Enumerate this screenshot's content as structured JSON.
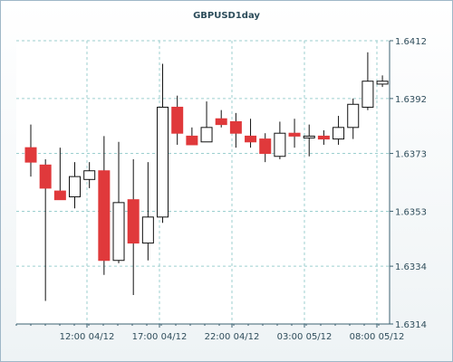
{
  "chart_data": {
    "type": "candlestick",
    "title": "GBPUSD1day",
    "y_ticks": [
      "1.6412",
      "1.6392",
      "1.6373",
      "1.6353",
      "1.6334",
      "1.6314"
    ],
    "x_ticks": [
      "12:00 04/12",
      "17:00 04/12",
      "22:00 04/12",
      "03:00 05/12",
      "08:00 05/12"
    ],
    "ylim": [
      1.6314,
      1.6412
    ],
    "grid": true,
    "colors": {
      "up": "#ffffff",
      "down": "#e0393b",
      "outline": "#111111",
      "grid": "#9ccfcf",
      "axis": "#3c6272"
    },
    "candles": [
      {
        "open": 1.6375,
        "high": 1.6383,
        "low": 1.6365,
        "close": 1.637
      },
      {
        "open": 1.6369,
        "high": 1.6371,
        "low": 1.6322,
        "close": 1.6361
      },
      {
        "open": 1.636,
        "high": 1.6375,
        "low": 1.6357,
        "close": 1.6357
      },
      {
        "open": 1.6358,
        "high": 1.637,
        "low": 1.6354,
        "close": 1.6365
      },
      {
        "open": 1.6364,
        "high": 1.637,
        "low": 1.6361,
        "close": 1.6367
      },
      {
        "open": 1.6367,
        "high": 1.6379,
        "low": 1.6331,
        "close": 1.6336
      },
      {
        "open": 1.6336,
        "high": 1.6377,
        "low": 1.6335,
        "close": 1.6356
      },
      {
        "open": 1.6357,
        "high": 1.6371,
        "low": 1.6324,
        "close": 1.6342
      },
      {
        "open": 1.6342,
        "high": 1.637,
        "low": 1.6336,
        "close": 1.6351
      },
      {
        "open": 1.6351,
        "high": 1.6404,
        "low": 1.6349,
        "close": 1.6389
      },
      {
        "open": 1.6389,
        "high": 1.6393,
        "low": 1.6376,
        "close": 1.638
      },
      {
        "open": 1.6379,
        "high": 1.6382,
        "low": 1.6376,
        "close": 1.6376
      },
      {
        "open": 1.6377,
        "high": 1.6391,
        "low": 1.6377,
        "close": 1.6382
      },
      {
        "open": 1.6385,
        "high": 1.6388,
        "low": 1.6382,
        "close": 1.6383
      },
      {
        "open": 1.6384,
        "high": 1.6387,
        "low": 1.6375,
        "close": 1.638
      },
      {
        "open": 1.6379,
        "high": 1.6385,
        "low": 1.6375,
        "close": 1.6377
      },
      {
        "open": 1.6378,
        "high": 1.638,
        "low": 1.637,
        "close": 1.6373
      },
      {
        "open": 1.6372,
        "high": 1.6384,
        "low": 1.6371,
        "close": 1.638
      },
      {
        "open": 1.638,
        "high": 1.6385,
        "low": 1.6375,
        "close": 1.6379
      },
      {
        "open": 1.6379,
        "high": 1.6383,
        "low": 1.6372,
        "close": 1.6379
      },
      {
        "open": 1.6379,
        "high": 1.6381,
        "low": 1.6376,
        "close": 1.6378
      },
      {
        "open": 1.6378,
        "high": 1.6386,
        "low": 1.6376,
        "close": 1.6382
      },
      {
        "open": 1.6382,
        "high": 1.6392,
        "low": 1.6378,
        "close": 1.639
      },
      {
        "open": 1.6389,
        "high": 1.6408,
        "low": 1.6388,
        "close": 1.6398
      },
      {
        "open": 1.6397,
        "high": 1.64,
        "low": 1.6396,
        "close": 1.6398
      }
    ]
  }
}
